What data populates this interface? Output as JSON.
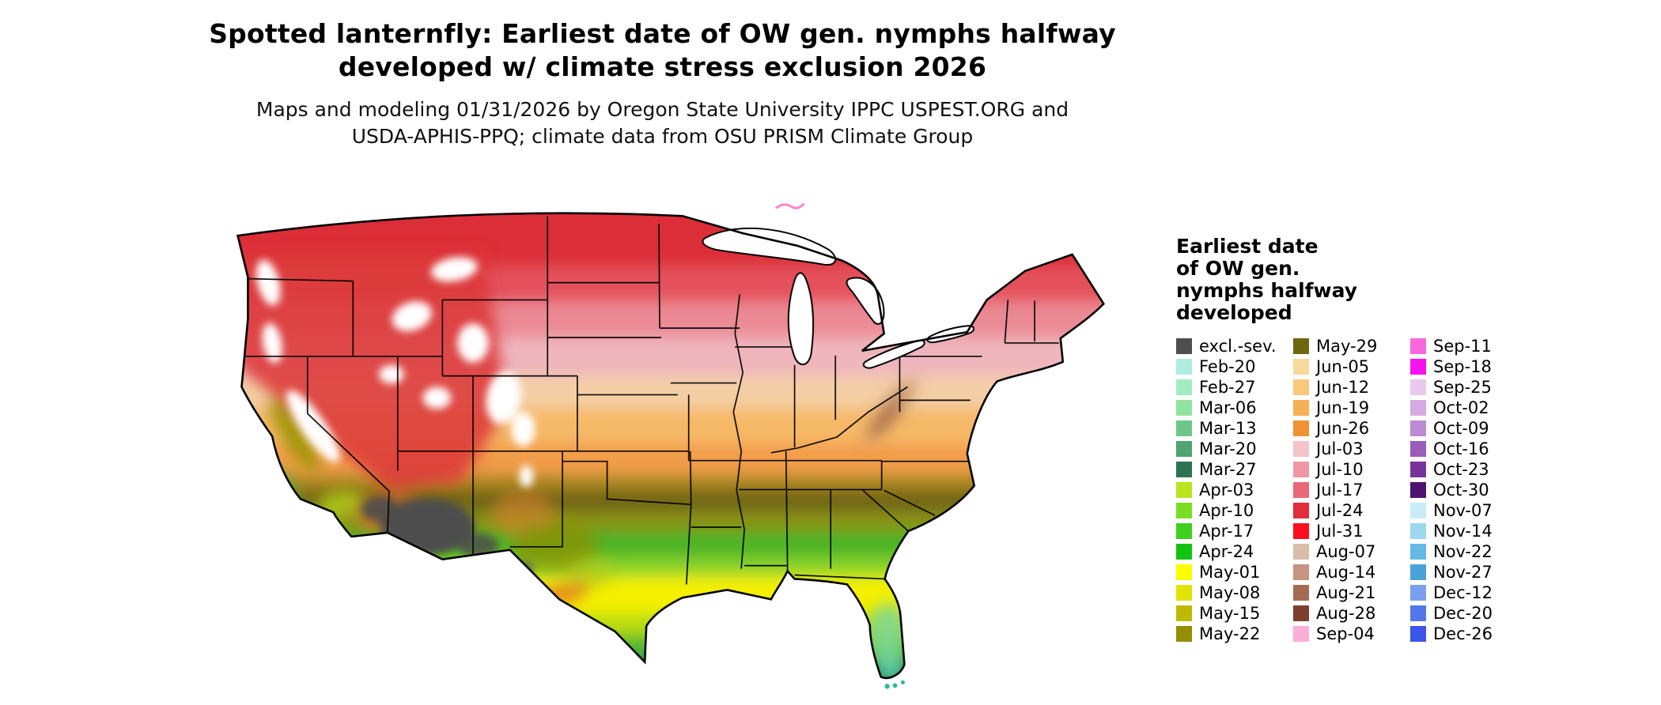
{
  "title": {
    "line1": "Spotted lanternfly: Earliest date of OW gen. nymphs halfway",
    "line2": "developed w/ climate stress exclusion 2026"
  },
  "subtitle": {
    "line1": "Maps and modeling 01/31/2026 by Oregon State University IPPC USPEST.ORG and",
    "line2": "USDA-APHIS-PPQ; climate data from OSU PRISM Climate Group"
  },
  "map": {
    "region": "Continental United States"
  },
  "legend": {
    "title_lines": [
      "Earliest date",
      "of OW gen.",
      "nymphs halfway",
      "developed"
    ],
    "columns": [
      {
        "items": [
          {
            "label": "excl.-sev.",
            "color": "#4e4e4e"
          },
          {
            "label": "Feb-20",
            "color": "#aeeedd"
          },
          {
            "label": "Feb-27",
            "color": "#a3ecc3"
          },
          {
            "label": "Mar-06",
            "color": "#92e39e"
          },
          {
            "label": "Mar-13",
            "color": "#6fc689"
          },
          {
            "label": "Mar-20",
            "color": "#4fa470"
          },
          {
            "label": "Mar-27",
            "color": "#2e7350"
          },
          {
            "label": "Apr-03",
            "color": "#b8e51e"
          },
          {
            "label": "Apr-10",
            "color": "#7ade24"
          },
          {
            "label": "Apr-17",
            "color": "#3ecf1f"
          },
          {
            "label": "Apr-24",
            "color": "#12c412"
          },
          {
            "label": "May-01",
            "color": "#fdfd00"
          },
          {
            "label": "May-08",
            "color": "#e3e300"
          },
          {
            "label": "May-15",
            "color": "#bdb900"
          },
          {
            "label": "May-22",
            "color": "#948e00"
          }
        ]
      },
      {
        "items": [
          {
            "label": "May-29",
            "color": "#6e6712"
          },
          {
            "label": "Jun-05",
            "color": "#f7da9b"
          },
          {
            "label": "Jun-12",
            "color": "#f8c87d"
          },
          {
            "label": "Jun-19",
            "color": "#f7b055"
          },
          {
            "label": "Jun-26",
            "color": "#ef9232"
          },
          {
            "label": "Jul-03",
            "color": "#f6c3cb"
          },
          {
            "label": "Jul-10",
            "color": "#f096a5"
          },
          {
            "label": "Jul-17",
            "color": "#e96a76"
          },
          {
            "label": "Jul-24",
            "color": "#e22d3b"
          },
          {
            "label": "Jul-31",
            "color": "#fb0f1c"
          },
          {
            "label": "Aug-07",
            "color": "#d9bcaa"
          },
          {
            "label": "Aug-14",
            "color": "#c69480"
          },
          {
            "label": "Aug-21",
            "color": "#a66a52"
          },
          {
            "label": "Aug-28",
            "color": "#7d4030"
          },
          {
            "label": "Sep-04",
            "color": "#fcaed6"
          }
        ]
      },
      {
        "items": [
          {
            "label": "Sep-11",
            "color": "#f967dd"
          },
          {
            "label": "Sep-18",
            "color": "#f513f0"
          },
          {
            "label": "Sep-25",
            "color": "#eac9ee"
          },
          {
            "label": "Oct-02",
            "color": "#d5a9e4"
          },
          {
            "label": "Oct-09",
            "color": "#bd8ad3"
          },
          {
            "label": "Oct-16",
            "color": "#9c5cba"
          },
          {
            "label": "Oct-23",
            "color": "#76349b"
          },
          {
            "label": "Oct-30",
            "color": "#4f1472"
          },
          {
            "label": "Nov-07",
            "color": "#c9ecf7"
          },
          {
            "label": "Nov-14",
            "color": "#9ed7ef"
          },
          {
            "label": "Nov-22",
            "color": "#66b9e3"
          },
          {
            "label": "Nov-27",
            "color": "#4aa3d8"
          },
          {
            "label": "Dec-12",
            "color": "#7aa0ee"
          },
          {
            "label": "Dec-20",
            "color": "#5377e8"
          },
          {
            "label": "Dec-26",
            "color": "#3b55e6"
          }
        ]
      }
    ]
  }
}
